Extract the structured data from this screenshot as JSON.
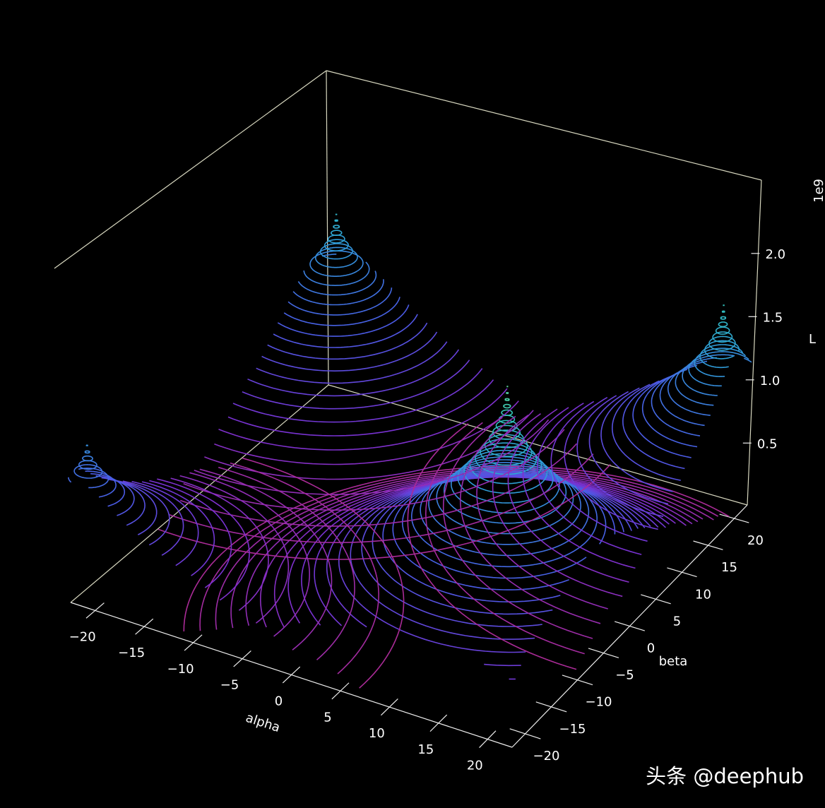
{
  "chart_data": {
    "type": "contour3d",
    "xlabel": "alpha",
    "ylabel": "beta",
    "zlabel": "L",
    "z_offset_label": "1e9",
    "xlim": [
      -22.5,
      22.5
    ],
    "ylim": [
      -22.5,
      22.5
    ],
    "zlim": [
      0.01,
      2.58
    ],
    "xticks": [
      {
        "value": -20,
        "label": "−20"
      },
      {
        "value": -15,
        "label": "−15"
      },
      {
        "value": -10,
        "label": "−10"
      },
      {
        "value": -5,
        "label": "−5"
      },
      0,
      5,
      10,
      15,
      20
    ],
    "yticks": [
      {
        "value": -20,
        "label": "−20"
      },
      {
        "value": -15,
        "label": "−15"
      },
      {
        "value": -10,
        "label": "−10"
      },
      {
        "value": -5,
        "label": "−5"
      },
      0,
      5,
      10,
      15,
      20
    ],
    "zticks": [
      0.5,
      {
        "value": 1,
        "label": "1.0"
      },
      1.5,
      {
        "value": 2,
        "label": "2.0"
      }
    ],
    "peaks": [
      {
        "alpha": 13.5,
        "beta": -7.8,
        "L": 2.0
      },
      {
        "alpha": -20,
        "beta": 20,
        "L": 1.6
      },
      {
        "alpha": 21,
        "beta": 19,
        "L": 1.75
      },
      {
        "alpha": -21,
        "beta": -21,
        "L": 1.25
      }
    ],
    "levels": [
      0.05,
      0.1,
      0.15,
      0.2,
      0.25,
      0.3,
      0.35,
      0.4,
      0.45,
      0.5,
      0.55,
      0.6,
      0.65,
      0.7,
      0.75,
      0.8,
      0.85,
      0.9,
      0.95,
      1.0,
      1.05,
      1.1,
      1.15,
      1.2,
      1.25,
      1.3,
      1.35,
      1.4,
      1.45,
      1.5,
      1.55,
      1.6,
      1.65,
      1.7,
      1.75,
      1.8,
      1.85,
      1.9,
      1.95
    ],
    "colormap": [
      "#b02a90",
      "#7a30d0",
      "#4a5ce6",
      "#2f9ad8",
      "#30c0b8",
      "#7ee07a",
      "#e8f050"
    ]
  },
  "watermark": "头条 @deephub"
}
